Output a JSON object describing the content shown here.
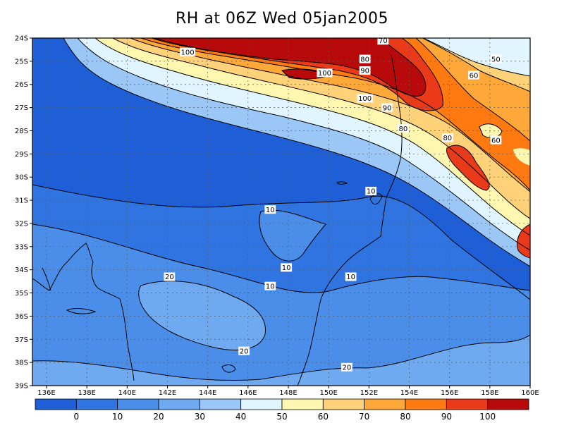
{
  "title": "RH at 06Z Wed 05jan2005",
  "lat_labels": [
    "24S",
    "25S",
    "26S",
    "27S",
    "28S",
    "29S",
    "30S",
    "31S",
    "32S",
    "33S",
    "34S",
    "35S",
    "36S",
    "37S",
    "38S",
    "39S"
  ],
  "lon_labels": [
    "136E",
    "138E",
    "140E",
    "142E",
    "144E",
    "146E",
    "148E",
    "150E",
    "152E",
    "154E",
    "156E",
    "158E",
    "160E"
  ],
  "colorbar": {
    "colors": [
      "#1e5fd8",
      "#2f74e0",
      "#4a8eea",
      "#6fa9f0",
      "#9bc7f7",
      "#e0f5ff",
      "#fff6b0",
      "#ffd27a",
      "#ffa83a",
      "#ff7a10",
      "#ea3a1a",
      "#b80a0a"
    ],
    "labels": [
      "0",
      "10",
      "20",
      "30",
      "40",
      "50",
      "60",
      "70",
      "80",
      "90",
      "100"
    ]
  },
  "contour_labels": [
    {
      "text": "100",
      "lon": 143.0,
      "lat": 24.6
    },
    {
      "text": "100",
      "lon": 149.8,
      "lat": 25.5
    },
    {
      "text": "100",
      "lon": 151.8,
      "lat": 26.6
    },
    {
      "text": "80",
      "lon": 151.8,
      "lat": 24.9
    },
    {
      "text": "90",
      "lon": 151.8,
      "lat": 25.4
    },
    {
      "text": "90",
      "lon": 152.9,
      "lat": 27.0
    },
    {
      "text": "80",
      "lon": 153.7,
      "lat": 27.9
    },
    {
      "text": "80",
      "lon": 155.9,
      "lat": 28.3
    },
    {
      "text": "70",
      "lon": 152.7,
      "lat": 24.1
    },
    {
      "text": "50",
      "lon": 158.3,
      "lat": 24.9
    },
    {
      "text": "60",
      "lon": 157.2,
      "lat": 25.6
    },
    {
      "text": "60",
      "lon": 158.3,
      "lat": 28.4
    },
    {
      "text": "10",
      "lon": 152.1,
      "lat": 30.6
    },
    {
      "text": "10",
      "lon": 147.1,
      "lat": 31.4
    },
    {
      "text": "10",
      "lon": 147.9,
      "lat": 33.9
    },
    {
      "text": "10",
      "lon": 147.1,
      "lat": 34.7
    },
    {
      "text": "10",
      "lon": 151.1,
      "lat": 34.3
    },
    {
      "text": "20",
      "lon": 142.1,
      "lat": 34.3
    },
    {
      "text": "20",
      "lon": 145.8,
      "lat": 37.5
    },
    {
      "text": "20",
      "lon": 150.9,
      "lat": 38.2
    }
  ]
}
